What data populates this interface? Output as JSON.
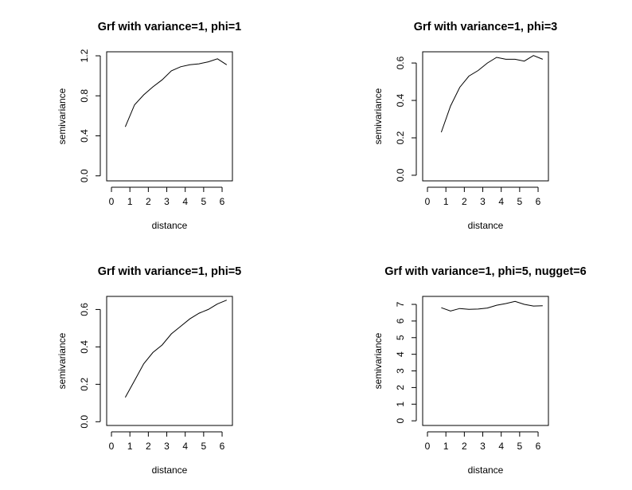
{
  "chart_data": [
    {
      "type": "line",
      "title": "Grf with variance=1, phi=1",
      "xlabel": "distance",
      "ylabel": "semivariance",
      "xticks": [
        0,
        1,
        2,
        3,
        4,
        5,
        6
      ],
      "yticks": [
        0.0,
        0.4,
        0.8,
        1.2
      ],
      "ytick_labels": [
        "0.0",
        "0.4",
        "0.8",
        "1.2"
      ],
      "xlim": [
        -0.26,
        6.56
      ],
      "ylim": [
        -0.05,
        1.24
      ],
      "grid": false,
      "series": [
        {
          "x": [
            0.75,
            1.25,
            1.75,
            2.25,
            2.75,
            3.25,
            3.75,
            4.25,
            4.75,
            5.25,
            5.75,
            6.25
          ],
          "y": [
            0.49,
            0.71,
            0.81,
            0.89,
            0.96,
            1.05,
            1.09,
            1.11,
            1.12,
            1.14,
            1.17,
            1.11
          ]
        }
      ]
    },
    {
      "type": "line",
      "title": "Grf with variance=1, phi=3",
      "xlabel": "distance",
      "ylabel": "semivariance",
      "xticks": [
        0,
        1,
        2,
        3,
        4,
        5,
        6
      ],
      "yticks": [
        0.0,
        0.2,
        0.4,
        0.6
      ],
      "ytick_labels": [
        "0.0",
        "0.2",
        "0.4",
        "0.6"
      ],
      "xlim": [
        -0.26,
        6.56
      ],
      "ylim": [
        -0.03,
        0.66
      ],
      "grid": false,
      "series": [
        {
          "x": [
            0.75,
            1.25,
            1.75,
            2.25,
            2.75,
            3.25,
            3.75,
            4.25,
            4.75,
            5.25,
            5.75,
            6.25
          ],
          "y": [
            0.23,
            0.37,
            0.47,
            0.53,
            0.56,
            0.6,
            0.63,
            0.62,
            0.62,
            0.61,
            0.64,
            0.62
          ]
        }
      ]
    },
    {
      "type": "line",
      "title": "Grf with variance=1, phi=5",
      "xlabel": "distance",
      "ylabel": "semivariance",
      "xticks": [
        0,
        1,
        2,
        3,
        4,
        5,
        6
      ],
      "yticks": [
        0.0,
        0.2,
        0.4,
        0.6
      ],
      "ytick_labels": [
        "0.0",
        "0.2",
        "0.4",
        "0.6"
      ],
      "xlim": [
        -0.26,
        6.56
      ],
      "ylim": [
        -0.02,
        0.67
      ],
      "grid": false,
      "series": [
        {
          "x": [
            0.75,
            1.25,
            1.75,
            2.25,
            2.75,
            3.25,
            3.75,
            4.25,
            4.75,
            5.25,
            5.75,
            6.25
          ],
          "y": [
            0.13,
            0.22,
            0.31,
            0.37,
            0.41,
            0.47,
            0.51,
            0.55,
            0.58,
            0.6,
            0.63,
            0.65
          ]
        }
      ]
    },
    {
      "type": "line",
      "title": "Grf with variance=1, phi=5, nugget=6",
      "xlabel": "distance",
      "ylabel": "semivariance",
      "xticks": [
        0,
        1,
        2,
        3,
        4,
        5,
        6
      ],
      "yticks": [
        0,
        1,
        2,
        3,
        4,
        5,
        6,
        7
      ],
      "ytick_labels": [
        "0",
        "1",
        "2",
        "3",
        "4",
        "5",
        "6",
        "7"
      ],
      "xlim": [
        -0.26,
        6.56
      ],
      "ylim": [
        -0.28,
        7.48
      ],
      "grid": false,
      "series": [
        {
          "x": [
            0.75,
            1.25,
            1.75,
            2.25,
            2.75,
            3.25,
            3.75,
            4.25,
            4.75,
            5.25,
            5.75,
            6.25
          ],
          "y": [
            6.8,
            6.6,
            6.75,
            6.7,
            6.72,
            6.78,
            6.95,
            7.05,
            7.18,
            7.0,
            6.9,
            6.92
          ]
        }
      ]
    }
  ]
}
